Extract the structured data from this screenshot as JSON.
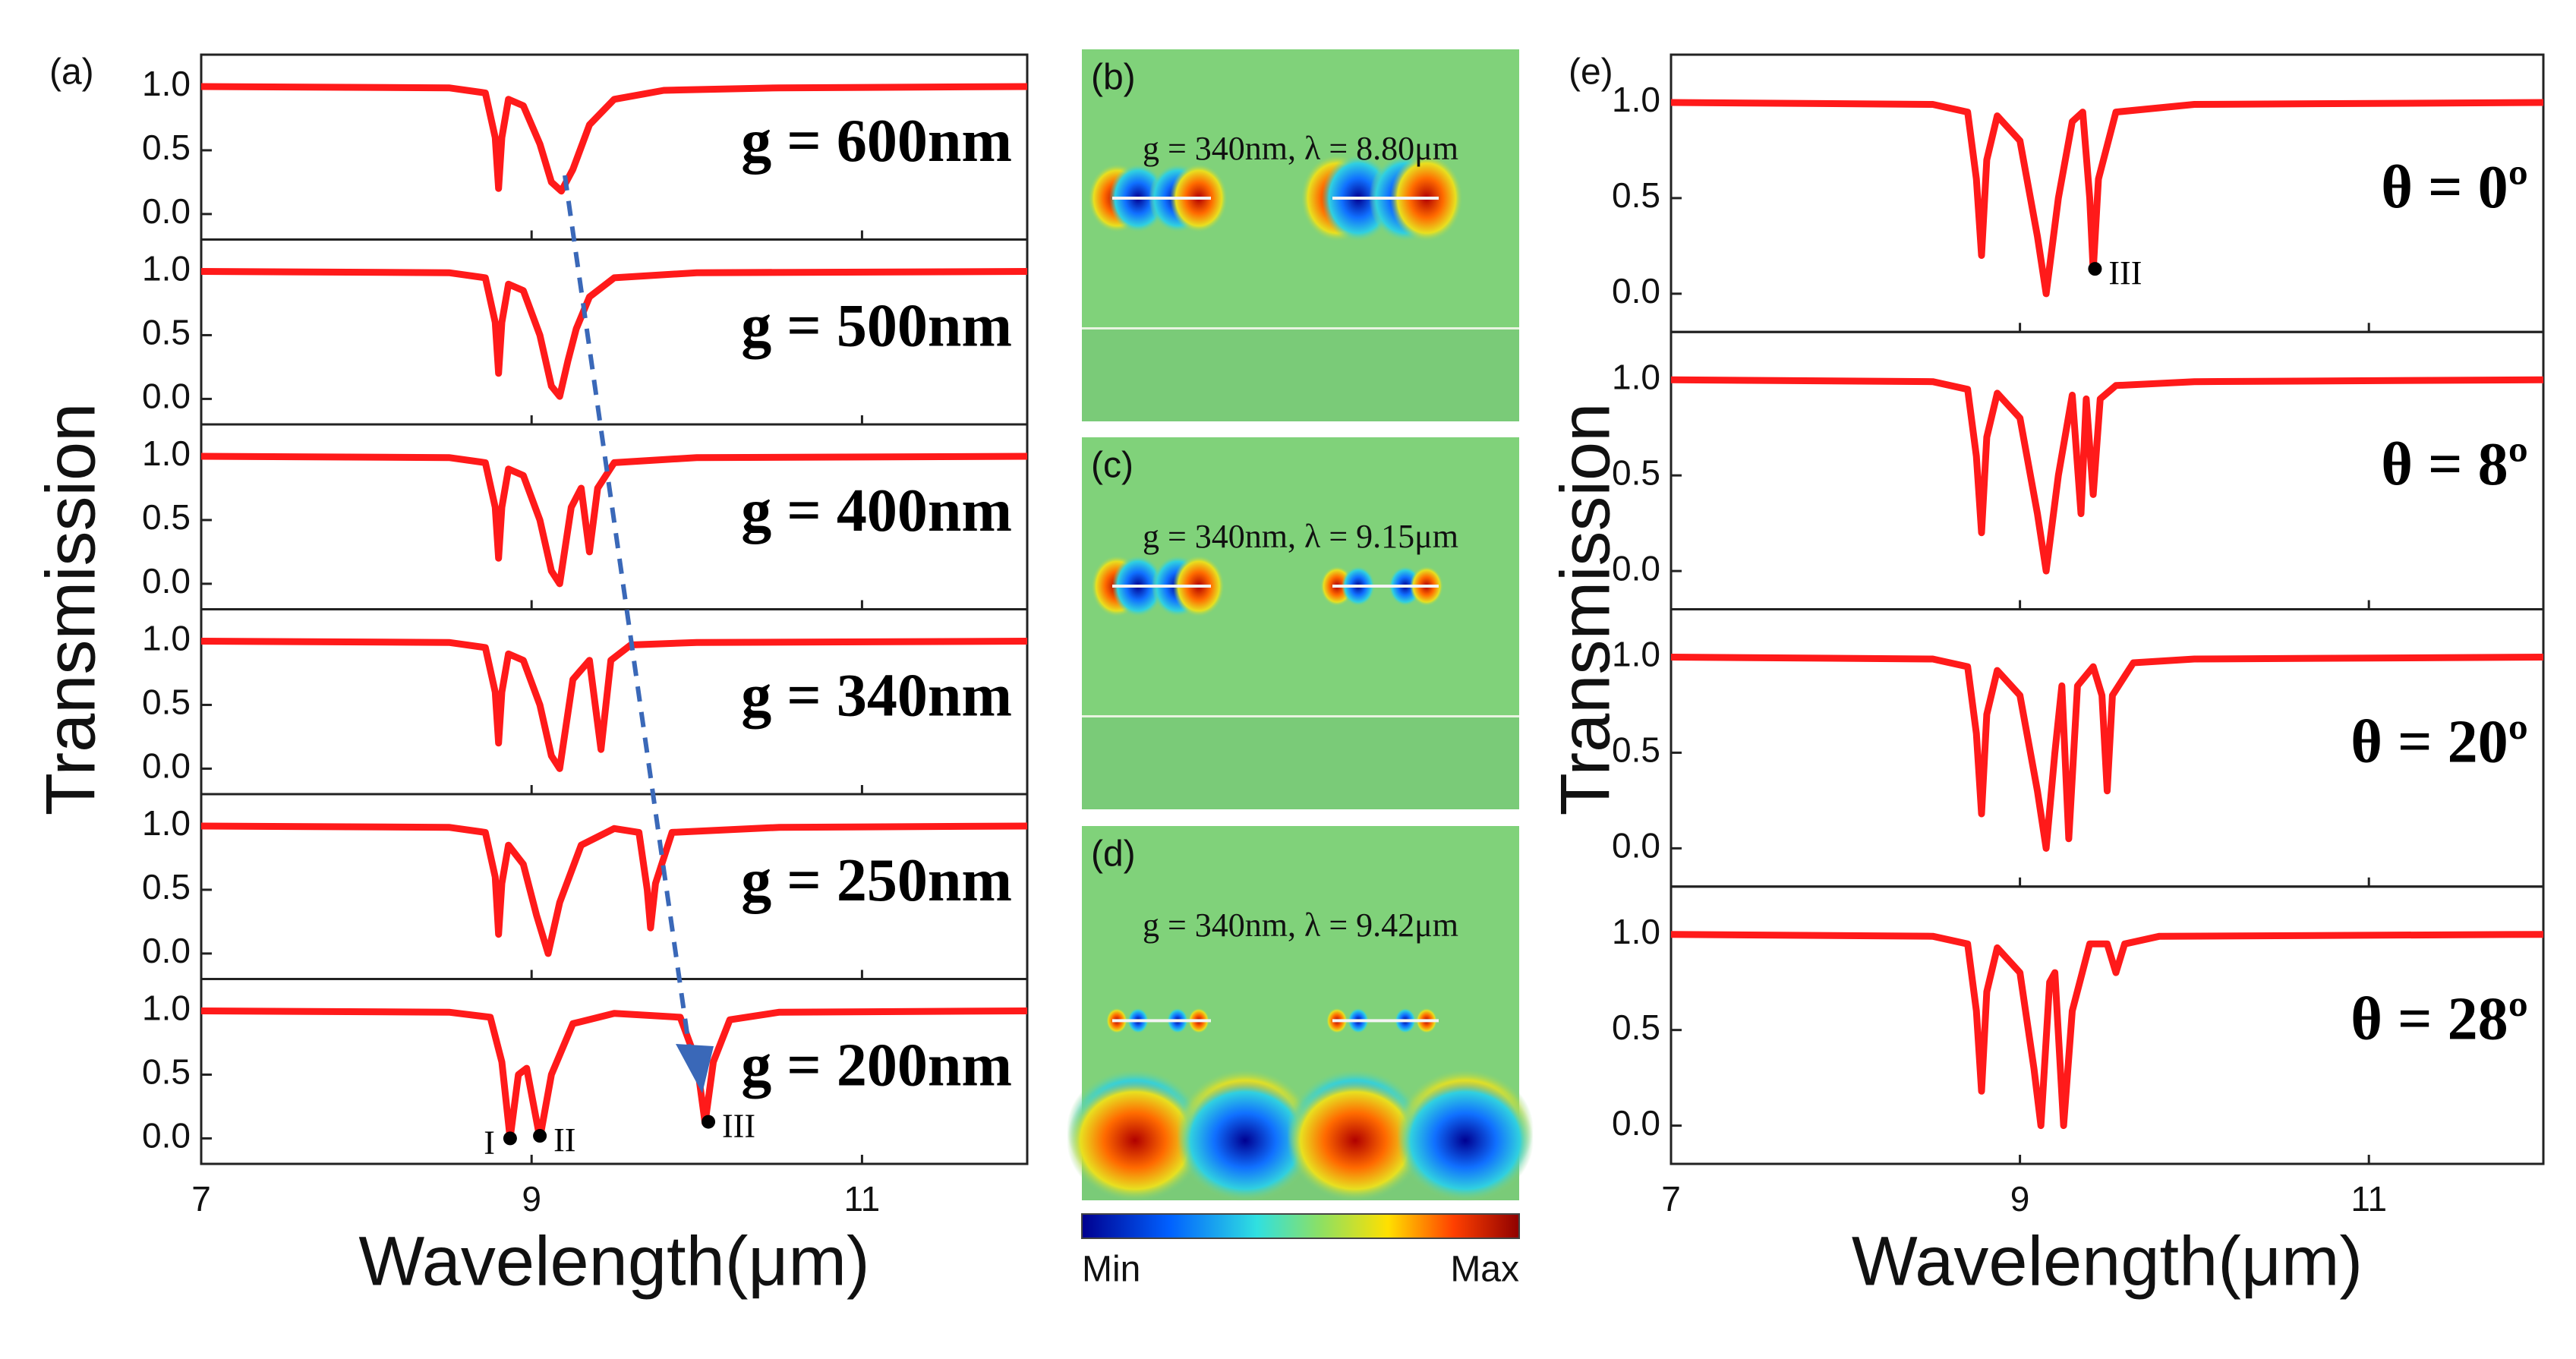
{
  "chart_data": [
    {
      "type": "line",
      "label": "(a)",
      "ylabel": "Transmission",
      "xlabel": "Wavelength(μm)",
      "color": "#ff1a1a",
      "xlim": [
        7,
        12
      ],
      "xticks": [
        7,
        9,
        11
      ],
      "ylim": [
        -0.2,
        1.25
      ],
      "yticks": [
        {
          "value": 0,
          "label": "0.0"
        },
        {
          "value": 0.5,
          "label": "0.5"
        },
        {
          "value": 1,
          "label": "1.0"
        }
      ],
      "subplots": [
        {
          "annotation": "g = 600nm",
          "x": [
            7,
            8.5,
            8.72,
            8.78,
            8.8,
            8.82,
            8.86,
            8.95,
            9.05,
            9.12,
            9.18,
            9.25,
            9.35,
            9.5,
            9.8,
            10.5,
            12
          ],
          "values": [
            1,
            0.99,
            0.95,
            0.6,
            0.2,
            0.6,
            0.9,
            0.85,
            0.55,
            0.25,
            0.18,
            0.35,
            0.7,
            0.9,
            0.97,
            0.99,
            1
          ]
        },
        {
          "annotation": "g = 500nm",
          "x": [
            7,
            8.5,
            8.72,
            8.78,
            8.8,
            8.82,
            8.86,
            8.95,
            9.05,
            9.12,
            9.17,
            9.22,
            9.27,
            9.35,
            9.5,
            10,
            12
          ],
          "values": [
            1,
            0.99,
            0.95,
            0.6,
            0.2,
            0.6,
            0.9,
            0.85,
            0.5,
            0.1,
            0.02,
            0.3,
            0.55,
            0.8,
            0.95,
            0.99,
            1
          ]
        },
        {
          "annotation": "g = 400nm",
          "x": [
            7,
            8.5,
            8.72,
            8.78,
            8.8,
            8.82,
            8.86,
            8.95,
            9.05,
            9.12,
            9.17,
            9.24,
            9.3,
            9.35,
            9.4,
            9.5,
            10,
            12
          ],
          "values": [
            1,
            0.99,
            0.95,
            0.6,
            0.2,
            0.6,
            0.9,
            0.85,
            0.5,
            0.1,
            0.0,
            0.6,
            0.75,
            0.25,
            0.75,
            0.95,
            0.99,
            1
          ]
        },
        {
          "annotation": "g = 340nm",
          "x": [
            7,
            8.5,
            8.72,
            8.78,
            8.8,
            8.82,
            8.86,
            8.95,
            9.05,
            9.12,
            9.17,
            9.25,
            9.35,
            9.42,
            9.48,
            9.6,
            10,
            12
          ],
          "values": [
            1,
            0.99,
            0.95,
            0.6,
            0.2,
            0.6,
            0.9,
            0.85,
            0.5,
            0.1,
            0.0,
            0.7,
            0.85,
            0.15,
            0.85,
            0.97,
            0.99,
            1
          ]
        },
        {
          "annotation": "g = 250nm",
          "x": [
            7,
            8.5,
            8.72,
            8.78,
            8.8,
            8.82,
            8.86,
            8.95,
            9.03,
            9.1,
            9.17,
            9.3,
            9.5,
            9.65,
            9.7,
            9.72,
            9.75,
            9.85,
            10.5,
            12
          ],
          "values": [
            1,
            0.99,
            0.95,
            0.6,
            0.15,
            0.55,
            0.85,
            0.7,
            0.3,
            0.0,
            0.4,
            0.85,
            0.98,
            0.95,
            0.5,
            0.2,
            0.55,
            0.95,
            0.99,
            1
          ]
        },
        {
          "annotation": "g = 200nm",
          "x": [
            7,
            8.5,
            8.75,
            8.82,
            8.87,
            8.92,
            8.97,
            9.05,
            9.12,
            9.25,
            9.5,
            9.9,
            10.0,
            10.05,
            10.1,
            10.2,
            10.5,
            12
          ],
          "values": [
            1,
            0.99,
            0.95,
            0.6,
            0.0,
            0.5,
            0.55,
            0.0,
            0.5,
            0.9,
            0.98,
            0.95,
            0.6,
            0.12,
            0.6,
            0.93,
            0.99,
            1
          ],
          "points": [
            {
              "label": "I",
              "x": 8.87,
              "y": 0
            },
            {
              "label": "II",
              "x": 9.05,
              "y": 0.02
            },
            {
              "label": "III",
              "x": 10.07,
              "y": 0.13
            }
          ]
        }
      ]
    },
    {
      "type": "line",
      "label": "(e)",
      "ylabel": "Transmission",
      "xlabel": "Wavelength(μm)",
      "color": "#ff1a1a",
      "xlim": [
        7,
        12
      ],
      "xticks": [
        7,
        9,
        11
      ],
      "ylim": [
        -0.2,
        1.25
      ],
      "yticks": [
        {
          "value": 0,
          "label": "0.0"
        },
        {
          "value": 0.5,
          "label": "0.5"
        },
        {
          "value": 1,
          "label": "1.0"
        }
      ],
      "subplots": [
        {
          "annotation": "θ = 0º",
          "x": [
            7,
            8.5,
            8.7,
            8.75,
            8.78,
            8.81,
            8.87,
            9.0,
            9.1,
            9.15,
            9.22,
            9.3,
            9.36,
            9.4,
            9.42,
            9.45,
            9.55,
            10,
            12
          ],
          "values": [
            1,
            0.99,
            0.95,
            0.6,
            0.2,
            0.7,
            0.93,
            0.8,
            0.3,
            0.0,
            0.5,
            0.9,
            0.95,
            0.5,
            0.12,
            0.6,
            0.95,
            0.99,
            1
          ],
          "points": [
            {
              "label": "III",
              "x": 9.43,
              "y": 0.13
            }
          ]
        },
        {
          "annotation": "θ = 8º",
          "x": [
            7,
            8.5,
            8.7,
            8.75,
            8.78,
            8.81,
            8.87,
            9.0,
            9.1,
            9.15,
            9.22,
            9.3,
            9.35,
            9.38,
            9.42,
            9.46,
            9.55,
            10,
            12
          ],
          "values": [
            1,
            0.99,
            0.95,
            0.6,
            0.2,
            0.7,
            0.93,
            0.8,
            0.3,
            0.0,
            0.5,
            0.92,
            0.3,
            0.9,
            0.4,
            0.9,
            0.97,
            0.99,
            1
          ]
        },
        {
          "annotation": "θ = 20º",
          "x": [
            7,
            8.5,
            8.7,
            8.75,
            8.78,
            8.81,
            8.87,
            9.0,
            9.1,
            9.15,
            9.2,
            9.24,
            9.28,
            9.33,
            9.42,
            9.47,
            9.5,
            9.53,
            9.65,
            10,
            12
          ],
          "values": [
            1,
            0.99,
            0.95,
            0.6,
            0.18,
            0.7,
            0.93,
            0.8,
            0.3,
            0.0,
            0.5,
            0.85,
            0.05,
            0.85,
            0.95,
            0.8,
            0.3,
            0.8,
            0.97,
            0.99,
            1
          ]
        },
        {
          "annotation": "θ = 28º",
          "x": [
            7,
            8.5,
            8.7,
            8.75,
            8.78,
            8.81,
            8.87,
            9.0,
            9.08,
            9.12,
            9.17,
            9.2,
            9.25,
            9.3,
            9.4,
            9.5,
            9.55,
            9.6,
            9.8,
            12
          ],
          "values": [
            1,
            0.99,
            0.95,
            0.6,
            0.18,
            0.7,
            0.93,
            0.8,
            0.3,
            0.0,
            0.75,
            0.8,
            0.0,
            0.6,
            0.95,
            0.95,
            0.8,
            0.95,
            0.99,
            1
          ]
        }
      ]
    }
  ],
  "field_maps": [
    {
      "label": "(b)",
      "caption": "g = 340nm, λ = 8.80μm"
    },
    {
      "label": "(c)",
      "caption": "g = 340nm, λ = 9.15μm"
    },
    {
      "label": "(d)",
      "caption": "g = 340nm, λ = 9.42μm"
    }
  ],
  "colorbar": {
    "min_label": "Min",
    "max_label": "Max"
  }
}
